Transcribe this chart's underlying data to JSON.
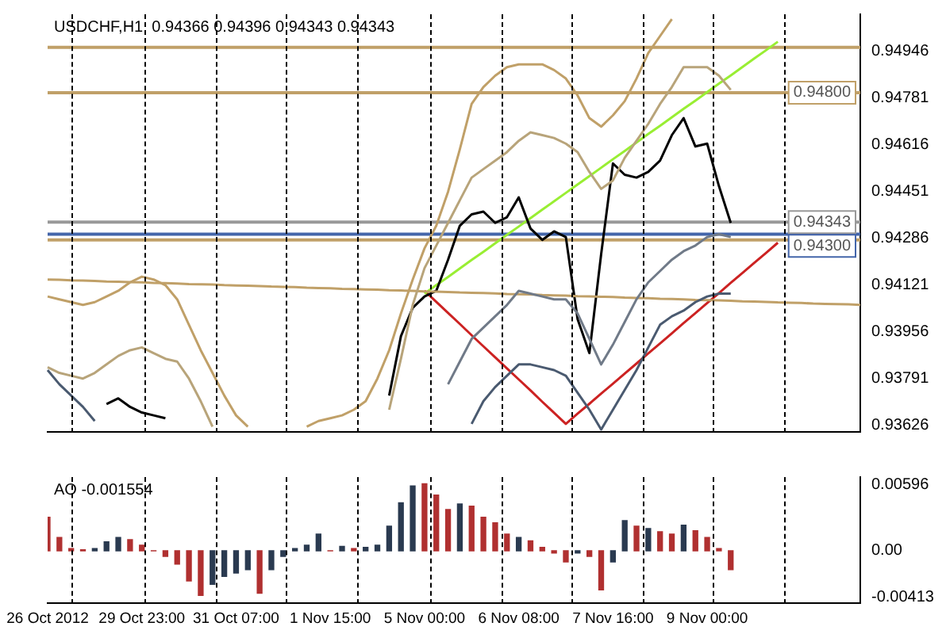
{
  "chart_data": [
    {
      "type": "line",
      "title": "USDCHF,H1  0.94366 0.94396 0.94343 0.94343",
      "marker": "none",
      "categories": [
        null,
        null,
        null,
        null,
        null,
        null,
        null,
        null,
        null,
        null,
        null,
        null,
        null,
        null,
        null,
        null,
        null,
        null,
        null,
        null,
        null,
        null,
        null,
        null,
        null,
        null,
        null,
        null,
        null,
        null,
        null,
        null,
        null,
        null,
        null,
        null,
        null,
        null,
        null,
        null,
        null,
        null,
        null,
        null,
        null,
        null,
        null,
        null,
        null,
        null,
        null,
        null,
        null,
        null,
        null,
        null,
        null,
        null,
        null,
        null,
        null,
        null,
        null,
        null,
        null,
        null,
        null,
        null,
        null,
        null
      ],
      "ylim": [
        0.93601,
        0.95077
      ],
      "yticks": [
        0.93626,
        0.93791,
        0.93956,
        0.94121,
        0.94286,
        0.94451,
        0.94616,
        0.94781,
        0.94946
      ],
      "series": [
        {
          "color": "#c0a068",
          "values": [
            0.9408,
            0.9407,
            0.9406,
            0.9405,
            0.9406,
            0.9408,
            0.941,
            0.9413,
            0.9415,
            0.9414,
            0.9412,
            0.9407,
            0.9398,
            0.9389,
            0.9381,
            0.9373,
            0.9366,
            0.9362,
            null,
            null,
            null,
            null,
            0.9362,
            0.9364,
            0.9365,
            0.9366,
            0.9368,
            0.9371,
            0.9379,
            0.9389,
            0.9402,
            0.9414,
            0.9425,
            0.9433,
            0.9445,
            0.946,
            0.9476,
            0.9482,
            0.9486,
            0.9489,
            0.949,
            0.949,
            0.949,
            0.9488,
            0.9485,
            0.9479,
            0.9471,
            0.9468,
            0.9472,
            0.9477,
            0.9485,
            0.9494,
            0.95,
            0.9506,
            null,
            null,
            null,
            null,
            null,
            null,
            null,
            null,
            null,
            null,
            null,
            null,
            null,
            null,
            null,
            null
          ]
        },
        {
          "color": "#b8a47a",
          "values": [
            0.9383,
            0.9381,
            0.938,
            0.9379,
            0.9381,
            0.9384,
            0.9387,
            0.9389,
            0.939,
            0.9388,
            0.9386,
            0.9385,
            0.9379,
            0.9371,
            0.9362,
            null,
            null,
            null,
            null,
            null,
            null,
            null,
            null,
            null,
            null,
            null,
            null,
            null,
            null,
            0.9368,
            0.9386,
            0.9405,
            0.9418,
            0.9426,
            0.9434,
            0.9442,
            0.945,
            0.9453,
            0.9456,
            0.9459,
            0.9463,
            0.9466,
            0.9465,
            0.9464,
            0.9462,
            0.9459,
            0.9452,
            0.9446,
            0.9449,
            0.9457,
            0.9463,
            0.9469,
            0.9476,
            0.9482,
            0.9489,
            0.9489,
            0.9489,
            0.9486,
            0.9481,
            null,
            null,
            null,
            null,
            null,
            null,
            null,
            null,
            null,
            null,
            null
          ]
        },
        {
          "color": "#707a88",
          "values": [
            null,
            null,
            null,
            null,
            null,
            null,
            null,
            null,
            null,
            null,
            null,
            null,
            null,
            null,
            null,
            null,
            null,
            null,
            null,
            null,
            null,
            null,
            null,
            null,
            null,
            null,
            null,
            null,
            null,
            null,
            null,
            null,
            null,
            null,
            0.9377,
            0.9385,
            0.9393,
            0.9397,
            0.9401,
            0.9405,
            0.941,
            0.9409,
            0.9408,
            0.9407,
            0.9407,
            0.9402,
            0.9393,
            0.9384,
            0.9391,
            0.9399,
            0.9407,
            0.9413,
            0.9417,
            0.9421,
            0.9424,
            0.9426,
            0.9429,
            0.943,
            0.9429,
            null,
            null,
            null,
            null,
            null,
            null,
            null,
            null,
            null,
            null,
            null
          ]
        },
        {
          "color": "#4a5a70",
          "values": [
            0.9382,
            0.9377,
            0.9373,
            0.9369,
            0.9364,
            null,
            null,
            null,
            null,
            null,
            null,
            null,
            null,
            null,
            null,
            null,
            null,
            null,
            null,
            null,
            null,
            null,
            null,
            null,
            null,
            null,
            null,
            null,
            null,
            null,
            null,
            null,
            null,
            null,
            null,
            null,
            0.9363,
            0.9371,
            0.9376,
            0.938,
            0.9384,
            0.9384,
            0.9383,
            0.9382,
            0.938,
            0.9374,
            0.9368,
            0.9361,
            0.9368,
            0.9375,
            0.9382,
            0.939,
            0.9398,
            0.9401,
            0.9403,
            0.9406,
            0.9408,
            0.9409,
            0.9409,
            null,
            null,
            null,
            null,
            null,
            null,
            null,
            null,
            null,
            null,
            null
          ]
        },
        {
          "color": "#c0a068",
          "values": [
            0.9414,
            0.94139,
            0.94137,
            0.94136,
            0.94135,
            0.94133,
            0.94132,
            0.94131,
            0.9413,
            0.94128,
            0.94127,
            0.94126,
            0.94124,
            0.94123,
            0.94122,
            0.9412,
            0.94119,
            0.94118,
            0.94117,
            0.94115,
            0.94114,
            0.94113,
            0.94111,
            0.9411,
            0.94109,
            0.94107,
            0.94106,
            0.94105,
            0.94104,
            0.94102,
            0.94101,
            0.941,
            0.94098,
            0.94097,
            0.94096,
            0.94094,
            0.94093,
            0.94092,
            0.94091,
            0.94089,
            0.94088,
            0.94087,
            0.94085,
            0.94084,
            0.94083,
            0.94081,
            0.9408,
            0.94079,
            0.94078,
            0.94076,
            0.94075,
            0.94074,
            0.94072,
            0.94071,
            0.9407,
            0.94068,
            0.94067,
            0.94066,
            0.94065,
            0.94063,
            0.94062,
            0.94061,
            0.94059,
            0.94058,
            0.94057,
            0.94055,
            0.94054,
            0.94053,
            0.94052,
            0.9405
          ]
        },
        {
          "color": "#000000",
          "values": [
            null,
            null,
            null,
            null,
            null,
            0.937,
            0.9372,
            0.9369,
            0.9367,
            0.9366,
            0.9365,
            null,
            null,
            null,
            null,
            null,
            null,
            null,
            null,
            null,
            null,
            null,
            null,
            null,
            null,
            null,
            null,
            null,
            null,
            0.9373,
            0.9394,
            0.9404,
            0.9408,
            0.941,
            0.9421,
            0.9433,
            0.9437,
            0.9438,
            0.9434,
            0.9436,
            0.9443,
            0.9432,
            0.9428,
            0.9431,
            0.9429,
            0.94,
            0.9388,
            0.9423,
            0.9455,
            0.9451,
            0.945,
            0.9452,
            0.9456,
            0.9465,
            0.9471,
            0.9461,
            0.9462,
            0.9447,
            0.9434,
            null,
            null,
            null,
            null,
            null,
            null,
            null,
            null,
            null,
            null,
            null
          ]
        },
        {
          "color": "#99ee33",
          "values": [
            null,
            null,
            null,
            null,
            null,
            null,
            null,
            null,
            null,
            null,
            null,
            null,
            null,
            null,
            null,
            null,
            null,
            null,
            null,
            null,
            null,
            null,
            null,
            null,
            null,
            null,
            null,
            null,
            null,
            null,
            null,
            null,
            0.9409,
            0.9412,
            0.94149,
            0.94179,
            0.94209,
            0.94238,
            0.94268,
            0.94298,
            0.94327,
            0.94357,
            0.94387,
            0.94416,
            0.94446,
            0.94476,
            0.94505,
            0.94535,
            0.94565,
            0.94594,
            0.94624,
            0.94654,
            0.94683,
            0.94713,
            0.94743,
            0.94772,
            0.94802,
            0.94832,
            0.94861,
            0.94891,
            0.94921,
            0.9495,
            0.9498,
            null,
            null,
            null,
            null,
            null,
            null,
            null
          ]
        },
        {
          "color": "#cc2222",
          "values": [
            null,
            null,
            null,
            null,
            null,
            null,
            null,
            null,
            null,
            null,
            null,
            null,
            null,
            null,
            null,
            null,
            null,
            null,
            null,
            null,
            null,
            null,
            null,
            null,
            null,
            null,
            null,
            null,
            null,
            null,
            null,
            null,
            0.941,
            0.94061,
            0.94022,
            0.93983,
            0.93943,
            0.93904,
            0.93865,
            0.93826,
            0.93787,
            0.93748,
            0.93708,
            0.93669,
            0.9363,
            0.93666,
            0.93701,
            0.93737,
            0.93772,
            0.93808,
            0.93843,
            0.93879,
            0.93914,
            0.9395,
            0.93986,
            0.94021,
            0.94057,
            0.94092,
            0.94128,
            0.94163,
            0.94199,
            0.94234,
            0.9427,
            null,
            null,
            null,
            null,
            null,
            null,
            null
          ]
        }
      ],
      "ref_lines": [
        {
          "axis": "y",
          "value": 0.9496,
          "color": "#c0a068"
        },
        {
          "axis": "y",
          "value": 0.9428,
          "color": "#c0a068"
        },
        {
          "axis": "y",
          "value": 0.948,
          "label": "0.94800",
          "color": "#c0a068"
        },
        {
          "axis": "y",
          "value": 0.943,
          "label": "0.94300",
          "color": "#4466aa"
        },
        {
          "axis": "y",
          "value": 0.94343,
          "label": "0.94343",
          "color": "#999999"
        }
      ]
    },
    {
      "type": "bar",
      "title": "AO -0.001554",
      "categories": [
        "26 Oct 2012",
        null,
        null,
        null,
        null,
        null,
        null,
        null,
        "29 Oct 23:00",
        null,
        null,
        null,
        null,
        null,
        null,
        null,
        "31 Oct 07:00",
        null,
        null,
        null,
        null,
        null,
        null,
        null,
        "1 Nov 15:00",
        null,
        null,
        null,
        null,
        null,
        null,
        null,
        "5 Nov 00:00",
        null,
        null,
        null,
        null,
        null,
        null,
        null,
        "6 Nov 08:00",
        null,
        null,
        null,
        null,
        null,
        null,
        null,
        "7 Nov 16:00",
        null,
        null,
        null,
        null,
        null,
        null,
        null,
        "9 Nov 00:00",
        null,
        null,
        null,
        null,
        null,
        null,
        null,
        null,
        null,
        null,
        null,
        null,
        null
      ],
      "ylim": [
        -0.0047,
        0.0066
      ],
      "yticks": [
        -0.00413,
        {
          "value": 0,
          "label": "0.00"
        },
        0.00596
      ],
      "values": [
        0.003,
        0.0012,
        0.0002,
        0.0001,
        0.0002,
        0.0008,
        0.0012,
        0.001,
        0.0005,
        0,
        -0.0005,
        -0.0012,
        -0.0027,
        -0.004,
        -0.003,
        -0.0023,
        -0.002,
        -0.0017,
        -0.0038,
        -0.0017,
        -0.0005,
        0.0002,
        0.0005,
        0.0015,
        0,
        0.0004,
        0.0002,
        0.0003,
        0.0005,
        0.0022,
        0.0043,
        0.0058,
        0.006,
        0.005,
        0.0037,
        0.0042,
        0.004,
        0.003,
        0.0025,
        0.0015,
        0.0012,
        0.0009,
        0.0003,
        -0.0002,
        -0.001,
        -0.0002,
        -0.0005,
        -0.0035,
        -0.001,
        0.0027,
        0.0022,
        0.002,
        0.0017,
        0.0015,
        0.0023,
        0.0018,
        0.0012,
        0.0002,
        -0.0017,
        null,
        null,
        null,
        null,
        null,
        null,
        null,
        null,
        null,
        null,
        null
      ],
      "colors": [
        "#b03030",
        "#b03030",
        "#b03030",
        "#b03030",
        "#2a3a50",
        "#2a3a50",
        "#2a3a50",
        "#b03030",
        "#b03030",
        "#b03030",
        "#b03030",
        "#b03030",
        "#b03030",
        "#b03030",
        "#2a3a50",
        "#2a3a50",
        "#2a3a50",
        "#2a3a50",
        "#b03030",
        "#2a3a50",
        "#2a3a50",
        "#2a3a50",
        "#2a3a50",
        "#2a3a50",
        "#b03030",
        "#2a3a50",
        "#b03030",
        "#2a3a50",
        "#2a3a50",
        "#2a3a50",
        "#2a3a50",
        "#2a3a50",
        "#b03030",
        "#b03030",
        "#b03030",
        "#2a3a50",
        "#b03030",
        "#b03030",
        "#b03030",
        "#b03030",
        "#2a3a50",
        "#b03030",
        "#b03030",
        "#b03030",
        "#b03030",
        "#2a3a50",
        "#b03030",
        "#b03030",
        "#2a3a50",
        "#2a3a50",
        "#b03030",
        "#2a3a50",
        "#b03030",
        "#b03030",
        "#2a3a50",
        "#b03030",
        "#b03030",
        "#b03030",
        "#b03030",
        "#b03030",
        "#b03030",
        "#b03030",
        "#b03030",
        "#b03030",
        "#b03030",
        "#b03030",
        "#b03030",
        "#b03030",
        "#b03030",
        "#b03030"
      ]
    }
  ]
}
